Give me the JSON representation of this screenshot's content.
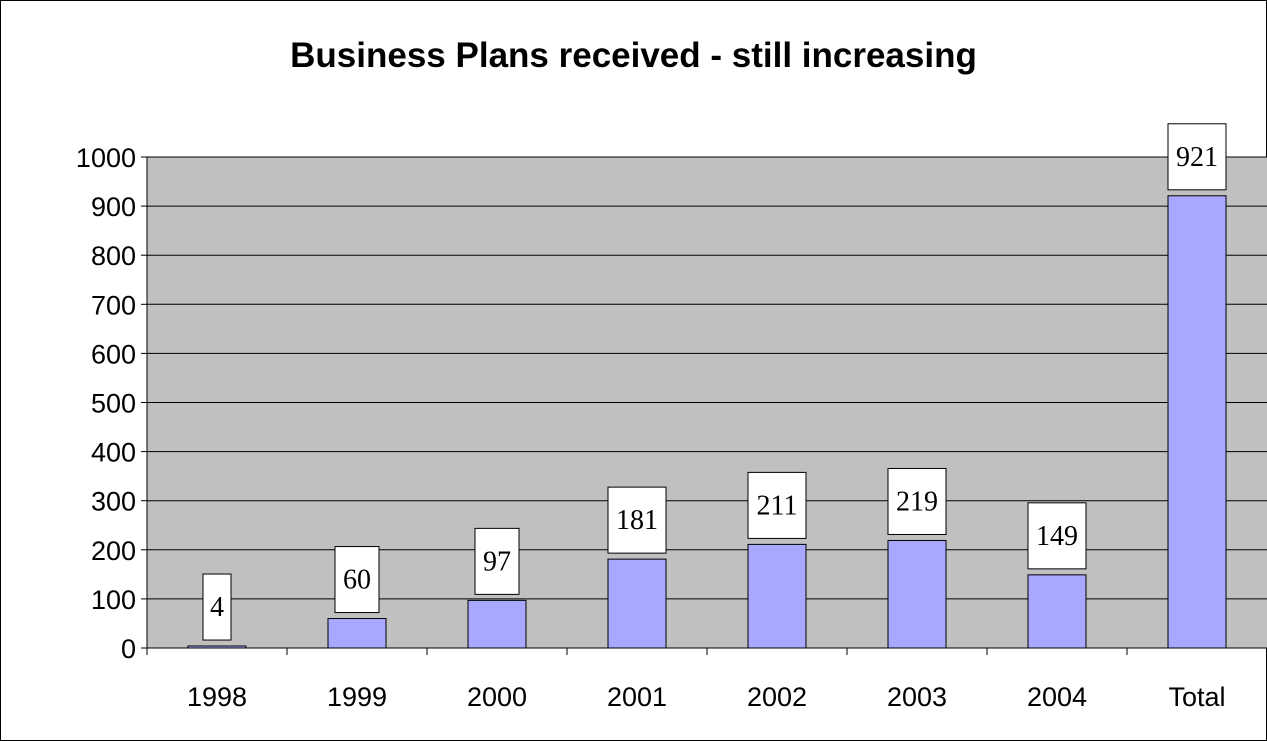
{
  "chart_data": {
    "type": "bar",
    "title": "Business Plans received - still increasing",
    "xlabel": "",
    "ylabel": "",
    "categories": [
      "1998",
      "1999",
      "2000",
      "2001",
      "2002",
      "2003",
      "2004",
      "Total"
    ],
    "values": [
      4,
      60,
      97,
      181,
      211,
      219,
      149,
      921
    ],
    "data_labels": [
      "4",
      "60",
      "97",
      "181",
      "211",
      "219",
      "149",
      "921"
    ],
    "ylim": [
      0,
      1000
    ],
    "y_ticks": [
      "0",
      "100",
      "200",
      "300",
      "400",
      "500",
      "600",
      "700",
      "800",
      "900",
      "1000"
    ],
    "grid": true,
    "legend": "none",
    "colors": {
      "plot_background": "#c0c0c0",
      "bar_fill": "#a8a8ff",
      "bar_stroke": "#000000",
      "gridline": "#000000"
    }
  }
}
